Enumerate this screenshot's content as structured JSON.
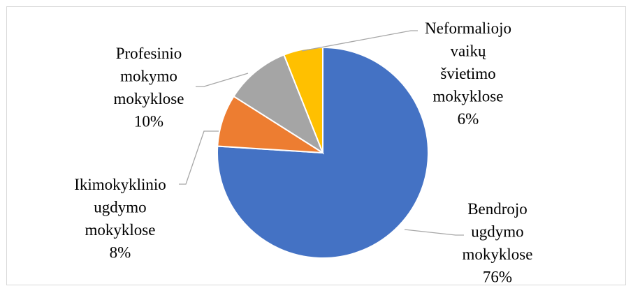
{
  "chart_data": {
    "type": "pie",
    "title": "",
    "slices": [
      {
        "label_lines": [
          "Bendrojo",
          "ugdymo",
          "mokyklose",
          "76%"
        ],
        "value": 76,
        "color": "#4472c4"
      },
      {
        "label_lines": [
          "Ikimokyklinio",
          "ugdymo",
          "mokyklose",
          "8%"
        ],
        "value": 8,
        "color": "#ed7d31"
      },
      {
        "label_lines": [
          "Profesinio",
          "mokymo",
          "mokyklose",
          "10%"
        ],
        "value": 10,
        "color": "#a5a5a5"
      },
      {
        "label_lines": [
          "Neformaliojo",
          "vaikų",
          "švietimo",
          "mokyklose",
          "6%"
        ],
        "value": 6,
        "color": "#ffc000"
      }
    ],
    "legend": "none",
    "data_labels": "outside with leader lines"
  }
}
